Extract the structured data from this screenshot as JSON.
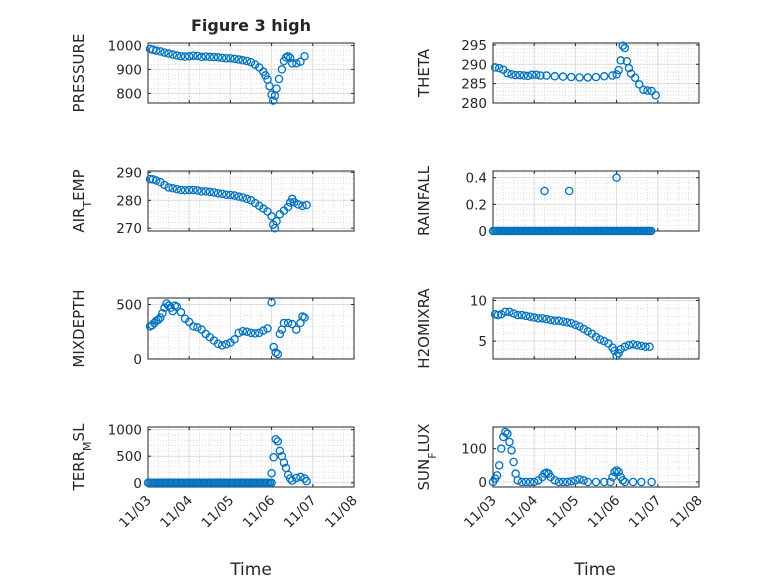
{
  "chart_data": {
    "type": "scatter",
    "title": "Figure 3 high",
    "xlabel": "Time",
    "x_tick_labels": [
      "11/03",
      "11/04",
      "11/05",
      "11/06",
      "11/07",
      "11/08"
    ],
    "xlim": [
      0,
      5
    ],
    "x_unit": "days from 11/03",
    "marker": "open-circle",
    "color": "#0072BD",
    "grid": true,
    "panels": [
      {
        "id": "pressure",
        "ylabel": "PRESSURE",
        "ylim": [
          760,
          1010
        ],
        "yticks": [
          800,
          900,
          1000
        ],
        "points": [
          [
            0.05,
            985
          ],
          [
            0.12,
            982
          ],
          [
            0.2,
            978
          ],
          [
            0.3,
            975
          ],
          [
            0.4,
            970
          ],
          [
            0.5,
            966
          ],
          [
            0.6,
            962
          ],
          [
            0.7,
            958
          ],
          [
            0.8,
            955
          ],
          [
            0.9,
            953
          ],
          [
            1.0,
            955
          ],
          [
            1.1,
            957
          ],
          [
            1.2,
            956
          ],
          [
            1.3,
            952
          ],
          [
            1.4,
            954
          ],
          [
            1.5,
            952
          ],
          [
            1.6,
            951
          ],
          [
            1.7,
            950
          ],
          [
            1.8,
            948
          ],
          [
            1.9,
            946
          ],
          [
            2.0,
            946
          ],
          [
            2.1,
            944
          ],
          [
            2.2,
            941
          ],
          [
            2.3,
            938
          ],
          [
            2.4,
            935
          ],
          [
            2.5,
            930
          ],
          [
            2.6,
            920
          ],
          [
            2.7,
            908
          ],
          [
            2.8,
            890
          ],
          [
            2.85,
            875
          ],
          [
            2.9,
            858
          ],
          [
            2.95,
            830
          ],
          [
            3.0,
            795
          ],
          [
            3.04,
            770
          ],
          [
            3.08,
            790
          ],
          [
            3.12,
            820
          ],
          [
            3.18,
            860
          ],
          [
            3.25,
            900
          ],
          [
            3.3,
            935
          ],
          [
            3.35,
            950
          ],
          [
            3.4,
            955
          ],
          [
            3.45,
            948
          ],
          [
            3.5,
            925
          ],
          [
            3.6,
            925
          ],
          [
            3.7,
            932
          ],
          [
            3.8,
            955
          ]
        ]
      },
      {
        "id": "theta",
        "ylabel": "THETA",
        "ylim": [
          280,
          295.5
        ],
        "yticks": [
          280,
          285,
          290,
          295
        ],
        "points": [
          [
            0.05,
            289.2
          ],
          [
            0.15,
            289
          ],
          [
            0.25,
            288.6
          ],
          [
            0.35,
            287.7
          ],
          [
            0.45,
            287.4
          ],
          [
            0.55,
            287.2
          ],
          [
            0.65,
            287.2
          ],
          [
            0.75,
            287.1
          ],
          [
            0.85,
            287
          ],
          [
            0.95,
            287.3
          ],
          [
            1.05,
            287.3
          ],
          [
            1.15,
            287.1
          ],
          [
            1.3,
            287.1
          ],
          [
            1.5,
            286.9
          ],
          [
            1.7,
            286.8
          ],
          [
            1.9,
            286.7
          ],
          [
            2.1,
            286.6
          ],
          [
            2.3,
            286.6
          ],
          [
            2.5,
            286.7
          ],
          [
            2.7,
            286.9
          ],
          [
            2.9,
            287.1
          ],
          [
            3.0,
            287.4
          ],
          [
            3.05,
            288.5
          ],
          [
            3.1,
            291
          ],
          [
            3.15,
            294.8
          ],
          [
            3.2,
            294.2
          ],
          [
            3.25,
            290.8
          ],
          [
            3.3,
            289
          ],
          [
            3.35,
            287.6
          ],
          [
            3.45,
            286.5
          ],
          [
            3.55,
            284.8
          ],
          [
            3.65,
            283.4
          ],
          [
            3.75,
            283.2
          ],
          [
            3.85,
            283.1
          ],
          [
            3.95,
            282
          ]
        ]
      },
      {
        "id": "air_temp",
        "ylabel": "AIR_TEMP",
        "ylim": [
          269,
          290.5
        ],
        "yticks": [
          270,
          280,
          290
        ],
        "points": [
          [
            0.05,
            287.6
          ],
          [
            0.12,
            287.5
          ],
          [
            0.2,
            287.1
          ],
          [
            0.3,
            286.5
          ],
          [
            0.4,
            285.5
          ],
          [
            0.5,
            284.6
          ],
          [
            0.6,
            284.3
          ],
          [
            0.7,
            284
          ],
          [
            0.8,
            283.7
          ],
          [
            0.9,
            283.6
          ],
          [
            1.0,
            283.7
          ],
          [
            1.1,
            283.7
          ],
          [
            1.2,
            283.5
          ],
          [
            1.3,
            283.2
          ],
          [
            1.4,
            283.2
          ],
          [
            1.5,
            283
          ],
          [
            1.6,
            282.8
          ],
          [
            1.7,
            282.5
          ],
          [
            1.8,
            282.3
          ],
          [
            1.9,
            282
          ],
          [
            2.0,
            281.9
          ],
          [
            2.1,
            281.7
          ],
          [
            2.2,
            281.3
          ],
          [
            2.3,
            281
          ],
          [
            2.4,
            280.5
          ],
          [
            2.5,
            280
          ],
          [
            2.6,
            279
          ],
          [
            2.7,
            278
          ],
          [
            2.8,
            277
          ],
          [
            2.9,
            276
          ],
          [
            3.0,
            274.3
          ],
          [
            3.04,
            271.3
          ],
          [
            3.08,
            270
          ],
          [
            3.12,
            272.5
          ],
          [
            3.2,
            275
          ],
          [
            3.3,
            276.3
          ],
          [
            3.4,
            277.6
          ],
          [
            3.45,
            279.2
          ],
          [
            3.5,
            280.5
          ],
          [
            3.55,
            279.3
          ],
          [
            3.65,
            278.5
          ],
          [
            3.75,
            278
          ],
          [
            3.85,
            278.3
          ]
        ]
      },
      {
        "id": "rainfall",
        "ylabel": "RAINFALL",
        "ylim": [
          0,
          0.45
        ],
        "yticks": [
          0,
          0.2,
          0.4
        ],
        "baseline_zero_range": [
          0.0,
          3.85
        ],
        "points": [
          [
            1.25,
            0.3
          ],
          [
            1.85,
            0.3
          ],
          [
            3.0,
            0.4
          ]
        ]
      },
      {
        "id": "mixdepth",
        "ylabel": "MIXDEPTH",
        "ylim": [
          0,
          560
        ],
        "yticks": [
          0,
          500
        ],
        "points": [
          [
            0.05,
            300
          ],
          [
            0.1,
            310
          ],
          [
            0.15,
            330
          ],
          [
            0.2,
            350
          ],
          [
            0.25,
            360
          ],
          [
            0.3,
            380
          ],
          [
            0.35,
            420
          ],
          [
            0.4,
            470
          ],
          [
            0.45,
            510
          ],
          [
            0.5,
            490
          ],
          [
            0.55,
            470
          ],
          [
            0.6,
            440
          ],
          [
            0.65,
            490
          ],
          [
            0.7,
            480
          ],
          [
            0.8,
            430
          ],
          [
            0.9,
            370
          ],
          [
            1.0,
            340
          ],
          [
            1.1,
            300
          ],
          [
            1.2,
            290
          ],
          [
            1.3,
            270
          ],
          [
            1.4,
            230
          ],
          [
            1.5,
            200
          ],
          [
            1.6,
            170
          ],
          [
            1.7,
            140
          ],
          [
            1.8,
            125
          ],
          [
            1.9,
            135
          ],
          [
            2.0,
            150
          ],
          [
            2.1,
            180
          ],
          [
            2.2,
            240
          ],
          [
            2.3,
            255
          ],
          [
            2.4,
            250
          ],
          [
            2.5,
            240
          ],
          [
            2.6,
            235
          ],
          [
            2.7,
            240
          ],
          [
            2.8,
            260
          ],
          [
            2.9,
            280
          ],
          [
            3.0,
            520
          ],
          [
            3.05,
            110
          ],
          [
            3.1,
            60
          ],
          [
            3.15,
            45
          ],
          [
            3.2,
            230
          ],
          [
            3.25,
            270
          ],
          [
            3.3,
            330
          ],
          [
            3.4,
            330
          ],
          [
            3.5,
            320
          ],
          [
            3.6,
            270
          ],
          [
            3.7,
            330
          ],
          [
            3.75,
            390
          ],
          [
            3.8,
            380
          ]
        ]
      },
      {
        "id": "h2omixra",
        "ylabel": "H2OMIXRA",
        "ylim": [
          2.8,
          10.3
        ],
        "yticks": [
          5,
          10
        ],
        "points": [
          [
            0.05,
            8.3
          ],
          [
            0.12,
            8.2
          ],
          [
            0.2,
            8.3
          ],
          [
            0.3,
            8.6
          ],
          [
            0.4,
            8.6
          ],
          [
            0.5,
            8.4
          ],
          [
            0.6,
            8.2
          ],
          [
            0.7,
            8.2
          ],
          [
            0.8,
            8.1
          ],
          [
            0.9,
            8
          ],
          [
            1.0,
            7.9
          ],
          [
            1.1,
            7.8
          ],
          [
            1.2,
            7.8
          ],
          [
            1.3,
            7.7
          ],
          [
            1.4,
            7.6
          ],
          [
            1.5,
            7.5
          ],
          [
            1.6,
            7.5
          ],
          [
            1.7,
            7.4
          ],
          [
            1.8,
            7.3
          ],
          [
            1.9,
            7.2
          ],
          [
            2.0,
            7
          ],
          [
            2.1,
            6.8
          ],
          [
            2.2,
            6.5
          ],
          [
            2.3,
            6.2
          ],
          [
            2.4,
            5.9
          ],
          [
            2.5,
            5.5
          ],
          [
            2.6,
            5.2
          ],
          [
            2.7,
            5
          ],
          [
            2.8,
            4.7
          ],
          [
            2.9,
            4.2
          ],
          [
            2.95,
            3.8
          ],
          [
            3.0,
            3.2
          ],
          [
            3.05,
            3.5
          ],
          [
            3.1,
            4
          ],
          [
            3.2,
            4.3
          ],
          [
            3.3,
            4.5
          ],
          [
            3.4,
            4.6
          ],
          [
            3.5,
            4.5
          ],
          [
            3.6,
            4.4
          ],
          [
            3.7,
            4.3
          ],
          [
            3.8,
            4.3
          ]
        ]
      },
      {
        "id": "terr_msl",
        "ylabel": "TERR_MSL",
        "ylim": [
          -80,
          1050
        ],
        "yticks": [
          0,
          500,
          1000
        ],
        "baseline_zero_range": [
          0.0,
          3.0
        ],
        "points": [
          [
            3.0,
            180
          ],
          [
            3.05,
            480
          ],
          [
            3.1,
            820
          ],
          [
            3.15,
            780
          ],
          [
            3.2,
            600
          ],
          [
            3.25,
            500
          ],
          [
            3.3,
            380
          ],
          [
            3.35,
            280
          ],
          [
            3.4,
            150
          ],
          [
            3.45,
            80
          ],
          [
            3.5,
            40
          ],
          [
            3.6,
            90
          ],
          [
            3.7,
            110
          ],
          [
            3.8,
            80
          ],
          [
            3.85,
            30
          ]
        ]
      },
      {
        "id": "sun_flux",
        "ylabel": "SUN_FLUX",
        "ylim": [
          -15,
          165
        ],
        "yticks": [
          0,
          100
        ],
        "points": [
          [
            0.0,
            0
          ],
          [
            0.05,
            10
          ],
          [
            0.1,
            20
          ],
          [
            0.15,
            50
          ],
          [
            0.2,
            100
          ],
          [
            0.25,
            135
          ],
          [
            0.3,
            150
          ],
          [
            0.35,
            145
          ],
          [
            0.4,
            120
          ],
          [
            0.45,
            95
          ],
          [
            0.5,
            60
          ],
          [
            0.55,
            25
          ],
          [
            0.6,
            5
          ],
          [
            0.7,
            0
          ],
          [
            0.8,
            0
          ],
          [
            0.9,
            0
          ],
          [
            1.0,
            0
          ],
          [
            1.1,
            5
          ],
          [
            1.2,
            15
          ],
          [
            1.25,
            25
          ],
          [
            1.3,
            28
          ],
          [
            1.35,
            25
          ],
          [
            1.4,
            15
          ],
          [
            1.5,
            5
          ],
          [
            1.6,
            0
          ],
          [
            1.7,
            0
          ],
          [
            1.8,
            0
          ],
          [
            1.9,
            2
          ],
          [
            2.0,
            5
          ],
          [
            2.1,
            8
          ],
          [
            2.2,
            5
          ],
          [
            2.3,
            0
          ],
          [
            2.5,
            0
          ],
          [
            2.7,
            0
          ],
          [
            2.85,
            0
          ],
          [
            2.9,
            15
          ],
          [
            2.95,
            30
          ],
          [
            3.0,
            35
          ],
          [
            3.05,
            30
          ],
          [
            3.1,
            15
          ],
          [
            3.15,
            5
          ],
          [
            3.2,
            0
          ],
          [
            3.4,
            0
          ],
          [
            3.6,
            0
          ],
          [
            3.85,
            0
          ]
        ]
      }
    ]
  }
}
